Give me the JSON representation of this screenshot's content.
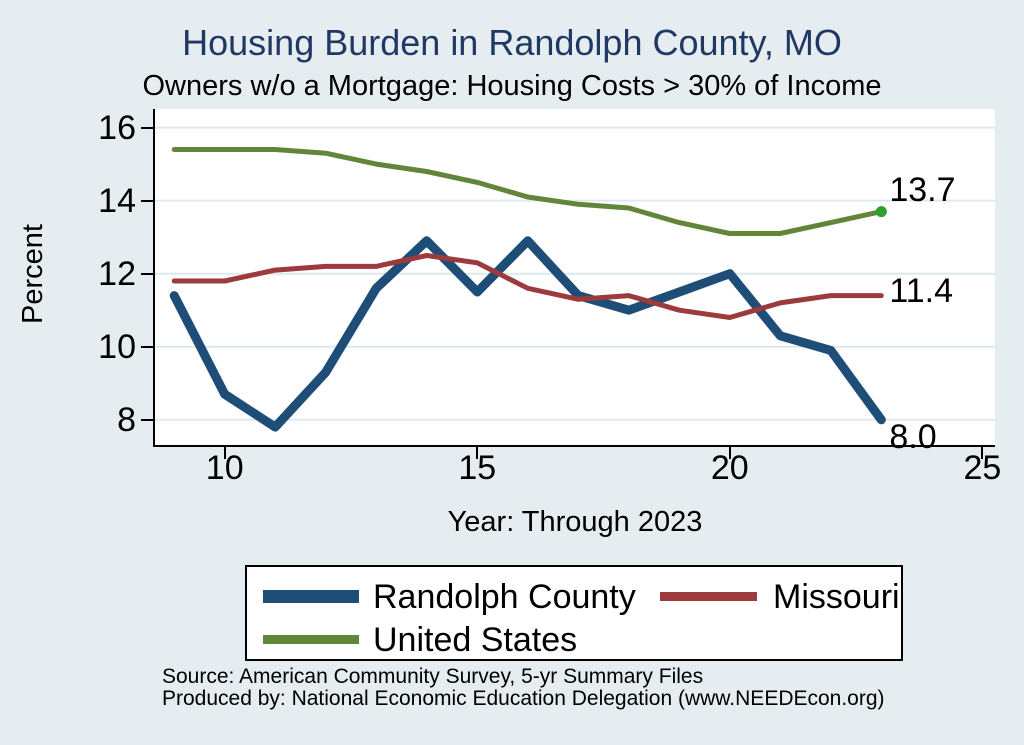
{
  "title": "Housing Burden in Randolph County, MO",
  "subtitle": "Owners w/o a Mortgage: Housing Costs > 30% of Income",
  "colors": {
    "background": "#e5edf0",
    "plot_background": "#ffffff",
    "title": "#1f3864",
    "gridline": "#dce9ef",
    "axis": "#000000"
  },
  "chart_data": {
    "type": "line",
    "title": "Housing Burden in Randolph County, MO",
    "subtitle": "Owners w/o a Mortgage: Housing Costs > 30% of Income",
    "xlabel": "Year: Through 2023",
    "ylabel": "Percent",
    "x": [
      2009,
      2010,
      2011,
      2012,
      2013,
      2014,
      2015,
      2016,
      2017,
      2018,
      2019,
      2020,
      2021,
      2022,
      2023
    ],
    "xlim": [
      2008.62,
      2025.25
    ],
    "ylim": [
      7.31,
      16.51
    ],
    "x_ticks": [
      {
        "value": 2010,
        "label": "10"
      },
      {
        "value": 2015,
        "label": "15"
      },
      {
        "value": 2020,
        "label": "20"
      },
      {
        "value": 2025,
        "label": "25"
      }
    ],
    "y_ticks": [
      {
        "value": 8,
        "label": "8"
      },
      {
        "value": 10,
        "label": "10"
      },
      {
        "value": 12,
        "label": "12"
      },
      {
        "value": 14,
        "label": "14"
      },
      {
        "value": 16,
        "label": "16"
      }
    ],
    "grid": true,
    "legend_position": "bottom",
    "series": [
      {
        "name": "Randolph County",
        "color": "#1e4d78",
        "line_width": 9,
        "values": [
          11.4,
          8.7,
          7.8,
          9.3,
          11.6,
          12.9,
          11.5,
          12.9,
          11.4,
          11.0,
          11.5,
          12.0,
          10.3,
          9.9,
          8.0
        ],
        "end_label": "8.0",
        "label_dx": 8,
        "label_dy": 17,
        "end_marker": false
      },
      {
        "name": "Missouri",
        "color": "#9c3a3c",
        "line_width": 5,
        "values": [
          11.8,
          11.8,
          12.1,
          12.2,
          12.2,
          12.5,
          12.3,
          11.6,
          11.3,
          11.4,
          11.0,
          10.8,
          11.2,
          11.4,
          11.4
        ],
        "end_label": "11.4",
        "label_dx": 8,
        "label_dy": -5,
        "end_marker": false
      },
      {
        "name": "United States",
        "color": "#63853a",
        "line_width": 5,
        "values": [
          15.4,
          15.4,
          15.4,
          15.3,
          15.0,
          14.8,
          14.5,
          14.1,
          13.9,
          13.8,
          13.4,
          13.1,
          13.1,
          13.4,
          13.7
        ],
        "end_label": "13.7",
        "label_dx": 8,
        "label_dy": -22,
        "end_marker": true,
        "marker_color": "#2aa12a"
      }
    ]
  },
  "footer": {
    "source": "Source: American Community Survey, 5-yr Summary Files",
    "produced_by": "Produced by: National Economic Education Delegation (www.NEEDEcon.org)"
  }
}
